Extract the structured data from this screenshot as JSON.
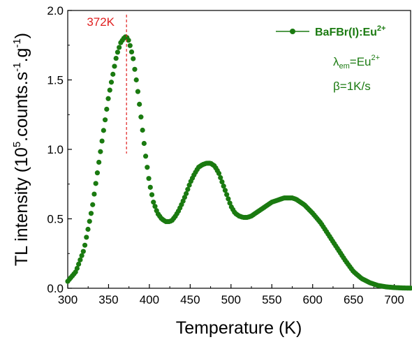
{
  "chart_data": {
    "type": "scatter",
    "xlabel": "Temperature (K)",
    "ylabel_parts": {
      "prefix": "TL intensity (10",
      "exp1": "5",
      "mid": ".counts.s",
      "exp2": "-1",
      "mid2": ".g",
      "exp3": "-1",
      "suffix": ")"
    },
    "xlim": [
      300,
      720
    ],
    "ylim": [
      0,
      2.0
    ],
    "xticks": [
      300,
      350,
      400,
      450,
      500,
      550,
      600,
      650,
      700
    ],
    "yticks": [
      0.0,
      0.5,
      1.0,
      1.5,
      2.0
    ],
    "ytick_labels": [
      "0.0",
      "0.5",
      "1.0",
      "1.5",
      "2.0"
    ],
    "series": [
      {
        "name": "BaFBr(I):Eu",
        "name_sup": "2+",
        "color": "#1a7a10",
        "x": [
          300,
          310,
          320,
          330,
          340,
          350,
          360,
          365,
          370,
          372,
          375,
          380,
          385,
          390,
          395,
          400,
          405,
          410,
          415,
          420,
          425,
          428,
          432,
          436,
          440,
          445,
          450,
          455,
          460,
          465,
          470,
          475,
          480,
          485,
          490,
          495,
          500,
          505,
          510,
          515,
          520,
          525,
          530,
          535,
          540,
          545,
          550,
          555,
          560,
          565,
          570,
          575,
          580,
          585,
          590,
          595,
          600,
          610,
          620,
          630,
          640,
          650,
          660,
          670,
          680,
          690,
          700,
          710,
          720
        ],
        "y": [
          0.05,
          0.12,
          0.28,
          0.58,
          0.98,
          1.38,
          1.68,
          1.77,
          1.81,
          1.81,
          1.78,
          1.66,
          1.46,
          1.22,
          0.97,
          0.76,
          0.62,
          0.54,
          0.5,
          0.48,
          0.48,
          0.49,
          0.52,
          0.56,
          0.61,
          0.68,
          0.76,
          0.82,
          0.87,
          0.89,
          0.9,
          0.9,
          0.88,
          0.83,
          0.75,
          0.67,
          0.59,
          0.54,
          0.52,
          0.51,
          0.51,
          0.52,
          0.54,
          0.56,
          0.58,
          0.6,
          0.62,
          0.63,
          0.64,
          0.65,
          0.65,
          0.65,
          0.64,
          0.62,
          0.6,
          0.57,
          0.54,
          0.47,
          0.38,
          0.29,
          0.2,
          0.12,
          0.07,
          0.04,
          0.02,
          0.01,
          0.005,
          0.002,
          0.001
        ]
      }
    ],
    "peak": {
      "x": 372,
      "label": "372K",
      "color": "#e02020"
    },
    "notes": {
      "lambda_symbol": "λ",
      "lambda_sub": "em",
      "lambda_value": "=Eu",
      "lambda_sup": "2+",
      "beta": "β=1K/s"
    },
    "grid": false,
    "legend_position": "top-right"
  }
}
